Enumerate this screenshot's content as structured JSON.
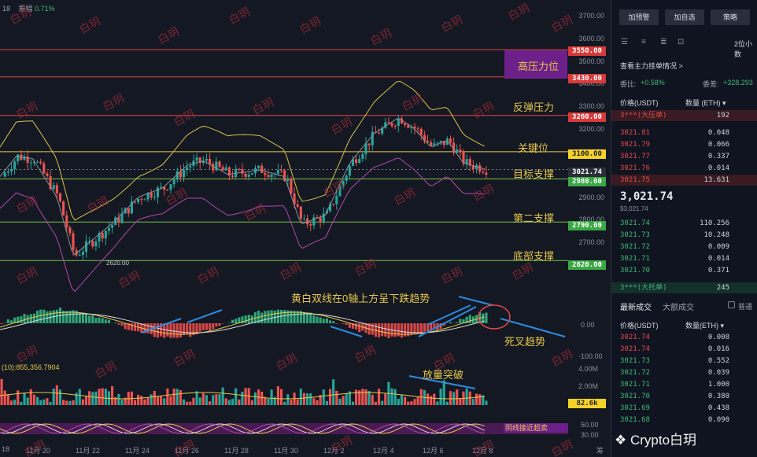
{
  "header": {
    "left_label": "18",
    "amplitude_label": "振幅",
    "amplitude_value": "0.71%"
  },
  "price_axis": [
    "3700.00",
    "3600.00",
    "3500.00",
    "3400.00",
    "3300.00",
    "3200.00",
    "3100.00",
    "3000.00",
    "2900.00",
    "2800.00",
    "2700.00",
    "2600.00"
  ],
  "price_tags": {
    "p3550": "3550.00",
    "p3430": "3430.00",
    "p3260": "3260.00",
    "p3100": "3100.00",
    "p3021": "3021.74",
    "p2980": "2980.00",
    "p2790": "2790.00",
    "p2620": "2620.00"
  },
  "low_label": "2620.00",
  "annotations": {
    "high_pressure": "高压力位",
    "rebound_pressure": "反弹压力",
    "key_level": "关键位",
    "target_support": "目标支撑",
    "second_support": "第二支撑",
    "bottom_support": "底部支撑",
    "macd_note": "黄白双线在0轴上方呈下跌趋势",
    "death_cross": "死叉趋势",
    "volume_break": "放量突破",
    "kdj_note": "阴线接近超卖"
  },
  "macd_axis": {
    "zero": "0.00",
    "neg": "-100.00"
  },
  "volume": {
    "ma_label": "(10):855,356.7904",
    "ticks": [
      "4.00M",
      "2.00M"
    ],
    "current": "82.6k"
  },
  "kdj_axis": [
    "60.00",
    "30.00"
  ],
  "x_dates": [
    "18",
    "11月 20",
    "11月 22",
    "11月 24",
    "11月 26",
    "11月 28",
    "11月 30",
    "12月 2",
    "12月 4",
    "12月 6",
    "12月 8",
    "筹"
  ],
  "watermark": "白玥",
  "panel": {
    "buttons": [
      "加预警",
      "加自选",
      "策略"
    ],
    "timeframe": "2位小数",
    "depth_link": "查看主力挂单情况 >",
    "ratio_label": "委比:",
    "ratio_value": "+0.58%",
    "diff_label": "委差:",
    "diff_value": "+328.293",
    "col_price": "价格(USDT)",
    "col_qty": "数量 (ETH) ▾",
    "big_sell_label": "3***(大压单)",
    "big_sell_qty": "192",
    "asks": [
      [
        "3021.81",
        "0.048"
      ],
      [
        "3021.79",
        "0.066"
      ],
      [
        "3021.77",
        "0.337"
      ],
      [
        "3021.76",
        "0.014"
      ],
      [
        "3021.75",
        "13.631"
      ]
    ],
    "last_price": "3,021.74",
    "last_price_sub": "$3,021.74",
    "bids": [
      [
        "3021.74",
        "110.256"
      ],
      [
        "3021.73",
        "10.248"
      ],
      [
        "3021.72",
        "0.009"
      ],
      [
        "3021.71",
        "0.014"
      ],
      [
        "3021.70",
        "0.371"
      ]
    ],
    "big_buy_label": "3***(大托单)",
    "big_buy_qty": "245",
    "tab_trades": "最新成交",
    "tab_big": "大额成交",
    "normal_label": "普通",
    "trade_col_price": "价格(USDT)",
    "trade_col_qty": "数量(ETH) ▾",
    "trades": [
      [
        "3021.74",
        "0.008",
        "red"
      ],
      [
        "3021.74",
        "0.016",
        "red"
      ],
      [
        "3021.73",
        "0.552",
        "grn"
      ],
      [
        "3021.72",
        "0.039",
        "grn"
      ],
      [
        "3021.71",
        "1.000",
        "grn"
      ],
      [
        "3021.70",
        "0.380",
        "grn"
      ],
      [
        "3021.69",
        "0.438",
        "grn"
      ],
      [
        "3021.68",
        "0.090",
        "grn"
      ]
    ],
    "brand": "Crypto白玥"
  },
  "colors": {
    "up": "#26a69a",
    "down": "#ef5350",
    "accent": "#e6c84a",
    "resistance": "#e04848",
    "support": "#79c24a"
  }
}
